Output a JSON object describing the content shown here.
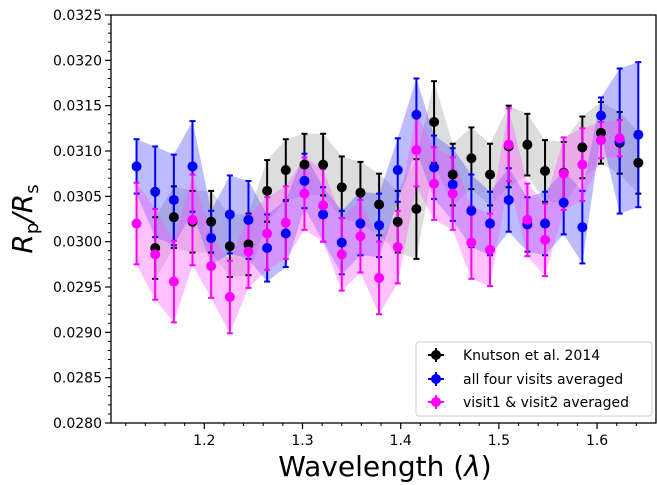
{
  "chart_data": {
    "type": "scatter",
    "title": "",
    "xlabel_text": "Wavelength (",
    "xlabel_symbol": "λ",
    "xlabel_close": ")",
    "ylabel_main": "R",
    "ylabel_sub1": "p",
    "ylabel_slash": "/R",
    "ylabel_sub2": "s",
    "xlim": [
      1.105,
      1.66
    ],
    "ylim": [
      0.028,
      0.0325
    ],
    "x_ticks": [
      1.2,
      1.3,
      1.4,
      1.5,
      1.6
    ],
    "x_tick_labels": [
      "1.2",
      "1.3",
      "1.4",
      "1.5",
      "1.6"
    ],
    "y_ticks": [
      0.028,
      0.0285,
      0.029,
      0.0295,
      0.03,
      0.0305,
      0.031,
      0.0315,
      0.032,
      0.0325
    ],
    "y_tick_labels": [
      "0.0280",
      "0.0285",
      "0.0290",
      "0.0295",
      "0.0300",
      "0.0305",
      "0.0310",
      "0.0315",
      "0.0320",
      "0.0325"
    ],
    "legend_position": "lower-right",
    "series": [
      {
        "name": "Knutson et al. 2014",
        "color": "#000000",
        "band_color": "#9e9e9e",
        "x": [
          1.15,
          1.169,
          1.188,
          1.207,
          1.226,
          1.245,
          1.264,
          1.283,
          1.302,
          1.321,
          1.34,
          1.359,
          1.378,
          1.397,
          1.416,
          1.434,
          1.453,
          1.472,
          1.491,
          1.51,
          1.529,
          1.547,
          1.566,
          1.585,
          1.604,
          1.623,
          1.642
        ],
        "y": [
          0.02993,
          0.03027,
          0.03022,
          0.03022,
          0.02995,
          0.02997,
          0.03056,
          0.03079,
          0.03085,
          0.03085,
          0.0306,
          0.03054,
          0.03041,
          0.03022,
          0.03036,
          0.03132,
          0.03074,
          0.03092,
          0.03074,
          0.03105,
          0.03107,
          0.03078,
          0.03076,
          0.03104,
          0.0312,
          0.03109,
          0.03087
        ],
        "err": [
          0.00034,
          0.00034,
          0.00034,
          0.00034,
          0.00034,
          0.00034,
          0.00034,
          0.00034,
          0.00034,
          0.00034,
          0.00034,
          0.00034,
          0.00034,
          0.00034,
          0.00055,
          0.00045,
          0.00034,
          0.00034,
          0.00034,
          0.00045,
          0.00034,
          0.00034,
          0.00034,
          0.00034,
          0.00034,
          0.00034,
          0.00034
        ]
      },
      {
        "name": "all four visits averaged",
        "color": "#0000ff",
        "band_color": "#4040ff",
        "x": [
          1.131,
          1.15,
          1.169,
          1.188,
          1.207,
          1.226,
          1.245,
          1.264,
          1.283,
          1.302,
          1.321,
          1.34,
          1.359,
          1.378,
          1.397,
          1.416,
          1.434,
          1.453,
          1.472,
          1.491,
          1.51,
          1.529,
          1.547,
          1.566,
          1.585,
          1.604,
          1.623,
          1.642
        ],
        "y": [
          0.03083,
          0.03055,
          0.03046,
          0.03083,
          0.03004,
          0.0303,
          0.03024,
          0.02993,
          0.03009,
          0.03067,
          0.0303,
          0.02999,
          0.0302,
          0.03018,
          0.03079,
          0.0314,
          0.03082,
          0.03063,
          0.03034,
          0.0302,
          0.03046,
          0.03019,
          0.0302,
          0.03043,
          0.03016,
          0.03139,
          0.03111,
          0.03118
        ],
        "err": [
          0.0003,
          0.0005,
          0.0005,
          0.0005,
          0.0003,
          0.00043,
          0.00043,
          0.00037,
          0.00037,
          0.0003,
          0.0003,
          0.00035,
          0.00035,
          0.00035,
          0.00035,
          0.0004,
          0.00035,
          0.0004,
          0.0004,
          0.00035,
          0.00035,
          0.0003,
          0.00035,
          0.00035,
          0.0004,
          0.0002,
          0.0008,
          0.0008
        ]
      },
      {
        "name": "visit1 & visit2 averaged",
        "color": "#ff00ff",
        "band_color": "#ff4dff",
        "x": [
          1.131,
          1.15,
          1.169,
          1.188,
          1.207,
          1.226,
          1.245,
          1.264,
          1.283,
          1.302,
          1.321,
          1.34,
          1.359,
          1.378,
          1.397,
          1.416,
          1.434,
          1.453,
          1.472,
          1.491,
          1.51,
          1.529,
          1.547,
          1.566,
          1.585,
          1.604,
          1.623
        ],
        "y": [
          0.0302,
          0.02986,
          0.02956,
          0.03024,
          0.02973,
          0.02939,
          0.02989,
          0.03009,
          0.03021,
          0.03053,
          0.0304,
          0.02986,
          0.03006,
          0.0296,
          0.02994,
          0.03101,
          0.03064,
          0.03053,
          0.02999,
          0.02991,
          0.03107,
          0.03024,
          0.03002,
          0.03075,
          0.03085,
          0.03112,
          0.03114
        ],
        "err": [
          0.00045,
          0.0005,
          0.00045,
          0.0005,
          0.00035,
          0.0004,
          0.0004,
          0.0004,
          0.0004,
          0.0004,
          0.0004,
          0.0004,
          0.0004,
          0.0004,
          0.0004,
          0.0004,
          0.0004,
          0.0004,
          0.0004,
          0.0004,
          0.0004,
          0.0004,
          0.0004,
          0.0004,
          0.0004,
          0.0002,
          0.0002
        ]
      }
    ]
  }
}
